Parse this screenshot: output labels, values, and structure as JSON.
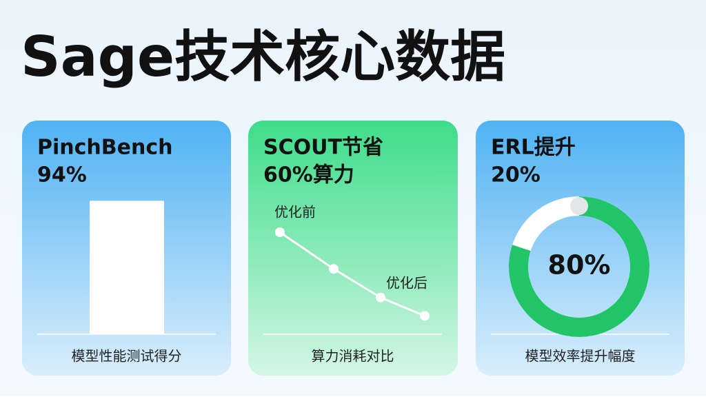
{
  "title": "Sage技术核心数据",
  "cards": [
    {
      "type": "bar",
      "title": [
        "PinchBench",
        "94%"
      ],
      "value": 94,
      "caption": "模型性能测试得分"
    },
    {
      "type": "line",
      "title": [
        "SCOUT节省",
        "60%算力"
      ],
      "labels": [
        "优化前",
        "优化后"
      ],
      "values": [
        100,
        64,
        36,
        18
      ],
      "caption": "算力消耗对比"
    },
    {
      "type": "donut",
      "title": [
        "ERL提升",
        "20%"
      ],
      "value": 80,
      "value_label": "80%",
      "caption": "模型效率提升幅度"
    }
  ]
}
